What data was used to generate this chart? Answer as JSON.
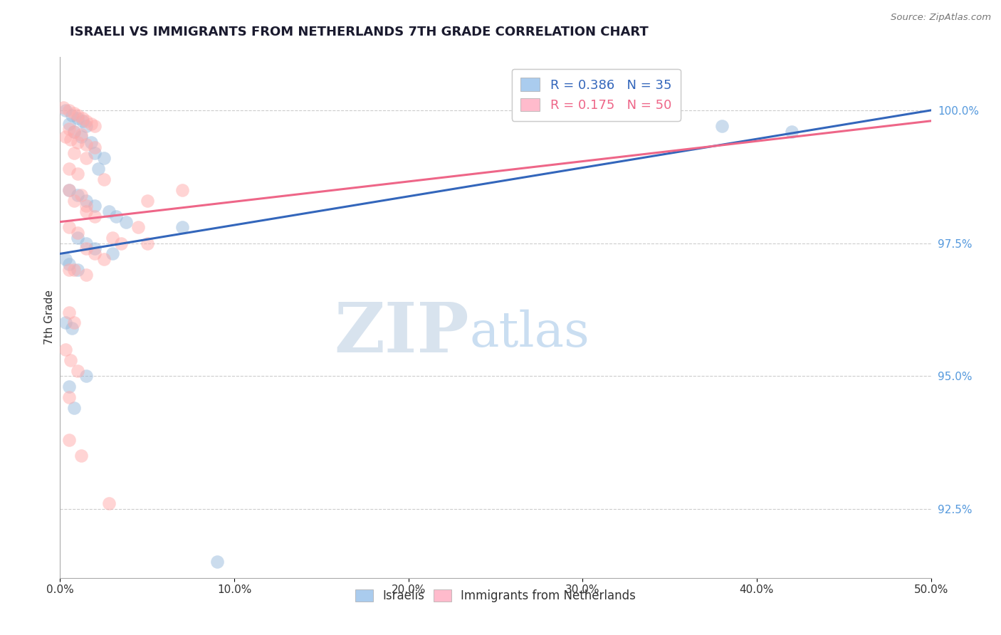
{
  "title": "ISRAELI VS IMMIGRANTS FROM NETHERLANDS 7TH GRADE CORRELATION CHART",
  "source": "Source: ZipAtlas.com",
  "ylabel": "7th Grade",
  "xlim": [
    0.0,
    50.0
  ],
  "ylim": [
    91.2,
    101.0
  ],
  "yticks": [
    92.5,
    95.0,
    97.5,
    100.0
  ],
  "xticks": [
    0.0,
    10.0,
    20.0,
    30.0,
    40.0,
    50.0
  ],
  "blue_color": "#99BBDD",
  "pink_color": "#FFAAAA",
  "blue_R": 0.386,
  "blue_N": 35,
  "pink_R": 0.175,
  "pink_N": 50,
  "blue_points": [
    [
      0.3,
      100.0
    ],
    [
      0.7,
      99.9
    ],
    [
      1.0,
      99.85
    ],
    [
      1.3,
      99.8
    ],
    [
      0.5,
      99.75
    ],
    [
      1.5,
      99.7
    ],
    [
      0.8,
      99.6
    ],
    [
      1.2,
      99.5
    ],
    [
      1.8,
      99.4
    ],
    [
      2.0,
      99.2
    ],
    [
      2.5,
      99.1
    ],
    [
      2.2,
      98.9
    ],
    [
      0.5,
      98.5
    ],
    [
      1.0,
      98.4
    ],
    [
      1.5,
      98.3
    ],
    [
      2.0,
      98.2
    ],
    [
      2.8,
      98.1
    ],
    [
      3.2,
      98.0
    ],
    [
      3.8,
      97.9
    ],
    [
      1.0,
      97.6
    ],
    [
      1.5,
      97.5
    ],
    [
      2.0,
      97.4
    ],
    [
      0.5,
      97.1
    ],
    [
      1.0,
      97.0
    ],
    [
      0.3,
      96.0
    ],
    [
      0.7,
      95.9
    ],
    [
      1.5,
      95.0
    ],
    [
      0.5,
      94.8
    ],
    [
      0.8,
      94.4
    ],
    [
      7.0,
      97.8
    ],
    [
      38.0,
      99.7
    ],
    [
      42.0,
      99.6
    ],
    [
      9.0,
      91.5
    ],
    [
      3.0,
      97.3
    ],
    [
      0.3,
      97.2
    ]
  ],
  "pink_points": [
    [
      0.2,
      100.05
    ],
    [
      0.5,
      100.0
    ],
    [
      0.8,
      99.95
    ],
    [
      1.0,
      99.9
    ],
    [
      1.3,
      99.85
    ],
    [
      1.5,
      99.8
    ],
    [
      1.8,
      99.75
    ],
    [
      2.0,
      99.7
    ],
    [
      0.5,
      99.65
    ],
    [
      0.8,
      99.6
    ],
    [
      1.2,
      99.55
    ],
    [
      0.3,
      99.5
    ],
    [
      0.6,
      99.45
    ],
    [
      1.0,
      99.4
    ],
    [
      1.5,
      99.35
    ],
    [
      2.0,
      99.3
    ],
    [
      0.8,
      99.2
    ],
    [
      1.5,
      99.1
    ],
    [
      0.5,
      98.9
    ],
    [
      1.0,
      98.8
    ],
    [
      2.5,
      98.7
    ],
    [
      0.5,
      98.5
    ],
    [
      1.2,
      98.4
    ],
    [
      0.8,
      98.3
    ],
    [
      1.5,
      98.1
    ],
    [
      2.0,
      98.0
    ],
    [
      0.5,
      97.8
    ],
    [
      1.0,
      97.7
    ],
    [
      3.0,
      97.6
    ],
    [
      5.0,
      97.5
    ],
    [
      1.5,
      97.4
    ],
    [
      2.0,
      97.3
    ],
    [
      0.5,
      97.0
    ],
    [
      1.5,
      96.9
    ],
    [
      3.5,
      97.5
    ],
    [
      5.0,
      98.3
    ],
    [
      0.5,
      96.2
    ],
    [
      0.8,
      96.0
    ],
    [
      2.5,
      97.2
    ],
    [
      0.5,
      94.6
    ],
    [
      2.8,
      92.6
    ],
    [
      1.2,
      93.5
    ],
    [
      0.3,
      95.5
    ],
    [
      0.6,
      95.3
    ],
    [
      1.0,
      95.1
    ],
    [
      4.5,
      97.8
    ],
    [
      7.0,
      98.5
    ],
    [
      0.5,
      93.8
    ],
    [
      0.8,
      97.0
    ],
    [
      1.5,
      98.2
    ]
  ],
  "blue_line": [
    0.0,
    97.3,
    50.0,
    100.0
  ],
  "pink_line": [
    0.0,
    97.9,
    50.0,
    99.8
  ],
  "watermark_zip": "ZIP",
  "watermark_atlas": "atlas",
  "watermark_zip_color": "#C8D8E8",
  "watermark_atlas_color": "#A8C8E8",
  "title_color": "#1a1a2e",
  "axis_color": "#333333",
  "ytick_color": "#5599DD",
  "grid_color": "#CCCCCC",
  "legend_blue_patch": "#AACCEE",
  "legend_pink_patch": "#FFBBCC",
  "dot_size": 180,
  "dot_alpha": 0.5,
  "line_width": 2.2,
  "title_fontsize": 13,
  "tick_fontsize": 11,
  "legend_fontsize": 13
}
